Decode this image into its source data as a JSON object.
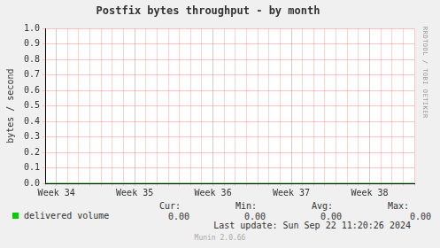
{
  "chart_data": {
    "type": "line",
    "title": "Postfix bytes throughput - by month",
    "y_label": "bytes / second",
    "categories": [
      null,
      "Week 34",
      null,
      null,
      null,
      null,
      null,
      null,
      "Week 35",
      null,
      null,
      null,
      null,
      null,
      null,
      "Week 36",
      null,
      null,
      null,
      null,
      null,
      null,
      "Week 37",
      null,
      null,
      null,
      null,
      null,
      null,
      "Week 38",
      null,
      null,
      null,
      null
    ],
    "series": [
      {
        "name": "delivered volume",
        "color": "#00cc00",
        "values": [
          0,
          0,
          0,
          0,
          0,
          0,
          0,
          0,
          0,
          0,
          0,
          0,
          0,
          0,
          0,
          0,
          0,
          0,
          0,
          0,
          0,
          0,
          0,
          0,
          0,
          0,
          0,
          0,
          0,
          0,
          0,
          0,
          0,
          0
        ],
        "stats": [
          {
            "label": "Cur:",
            "value": 0,
            "value_label": "0.00"
          },
          {
            "label": "Min:",
            "value": 0,
            "value_label": "0.00"
          },
          {
            "label": "Avg:",
            "value": 0,
            "value_label": "0.00"
          },
          {
            "label": "Max:",
            "value": 0,
            "value_label": "0.00"
          }
        ]
      }
    ],
    "ylim": [
      0,
      1
    ],
    "yticks": [
      {
        "value": 0,
        "label": "0.0"
      },
      {
        "value": 0.1,
        "label": "0.1"
      },
      {
        "value": 0.2,
        "label": "0.2"
      },
      {
        "value": 0.3,
        "label": "0.3"
      },
      {
        "value": 0.4,
        "label": "0.4"
      },
      {
        "value": 0.5,
        "label": "0.5"
      },
      {
        "value": 0.6,
        "label": "0.6"
      },
      {
        "value": 0.7,
        "label": "0.7"
      },
      {
        "value": 0.8,
        "label": "0.8"
      },
      {
        "value": 0.9,
        "label": "0.9"
      },
      {
        "value": 1,
        "label": "1.0"
      }
    ],
    "grid": true,
    "last_update": "Last update: Sun Sep 22 11:20:26 2024",
    "footer": "Munin 2.0.66",
    "side_text": "RRDTOOL / TOBI OETIKER"
  }
}
